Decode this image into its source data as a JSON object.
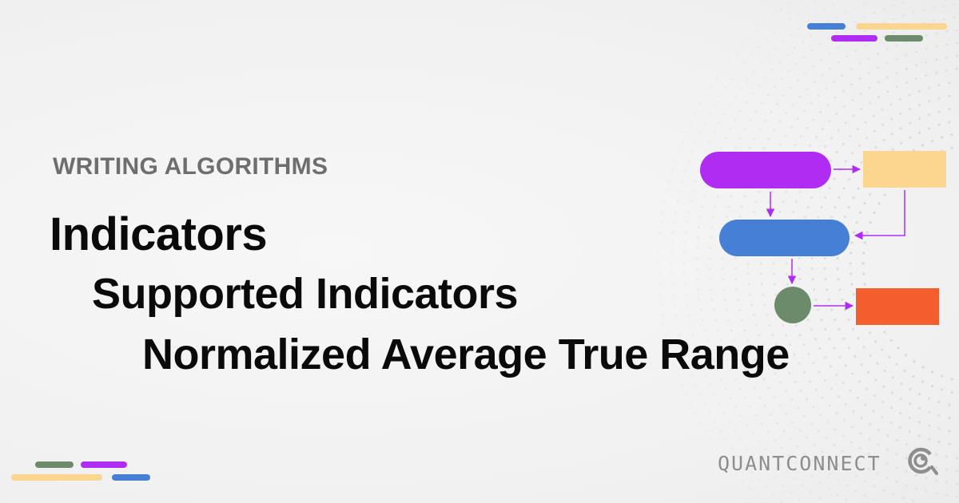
{
  "header": {
    "eyebrow": "WRITING ALGORITHMS"
  },
  "titles": {
    "line1": "Indicators",
    "line2": "Supported Indicators",
    "line3": "Normalized Average True Range"
  },
  "brand": {
    "name": "QUANTCONNECT",
    "logo_icon": "quantconnect-logo-icon"
  },
  "colors": {
    "purple": "#b12cf2",
    "yellow": "#fcd68f",
    "blue": "#4680d6",
    "green": "#6b8b6b",
    "orange": "#f45d2c",
    "arrow": "#b12cf2",
    "text_dark": "#0a0a0a",
    "text_gray": "#6e6e6e"
  }
}
